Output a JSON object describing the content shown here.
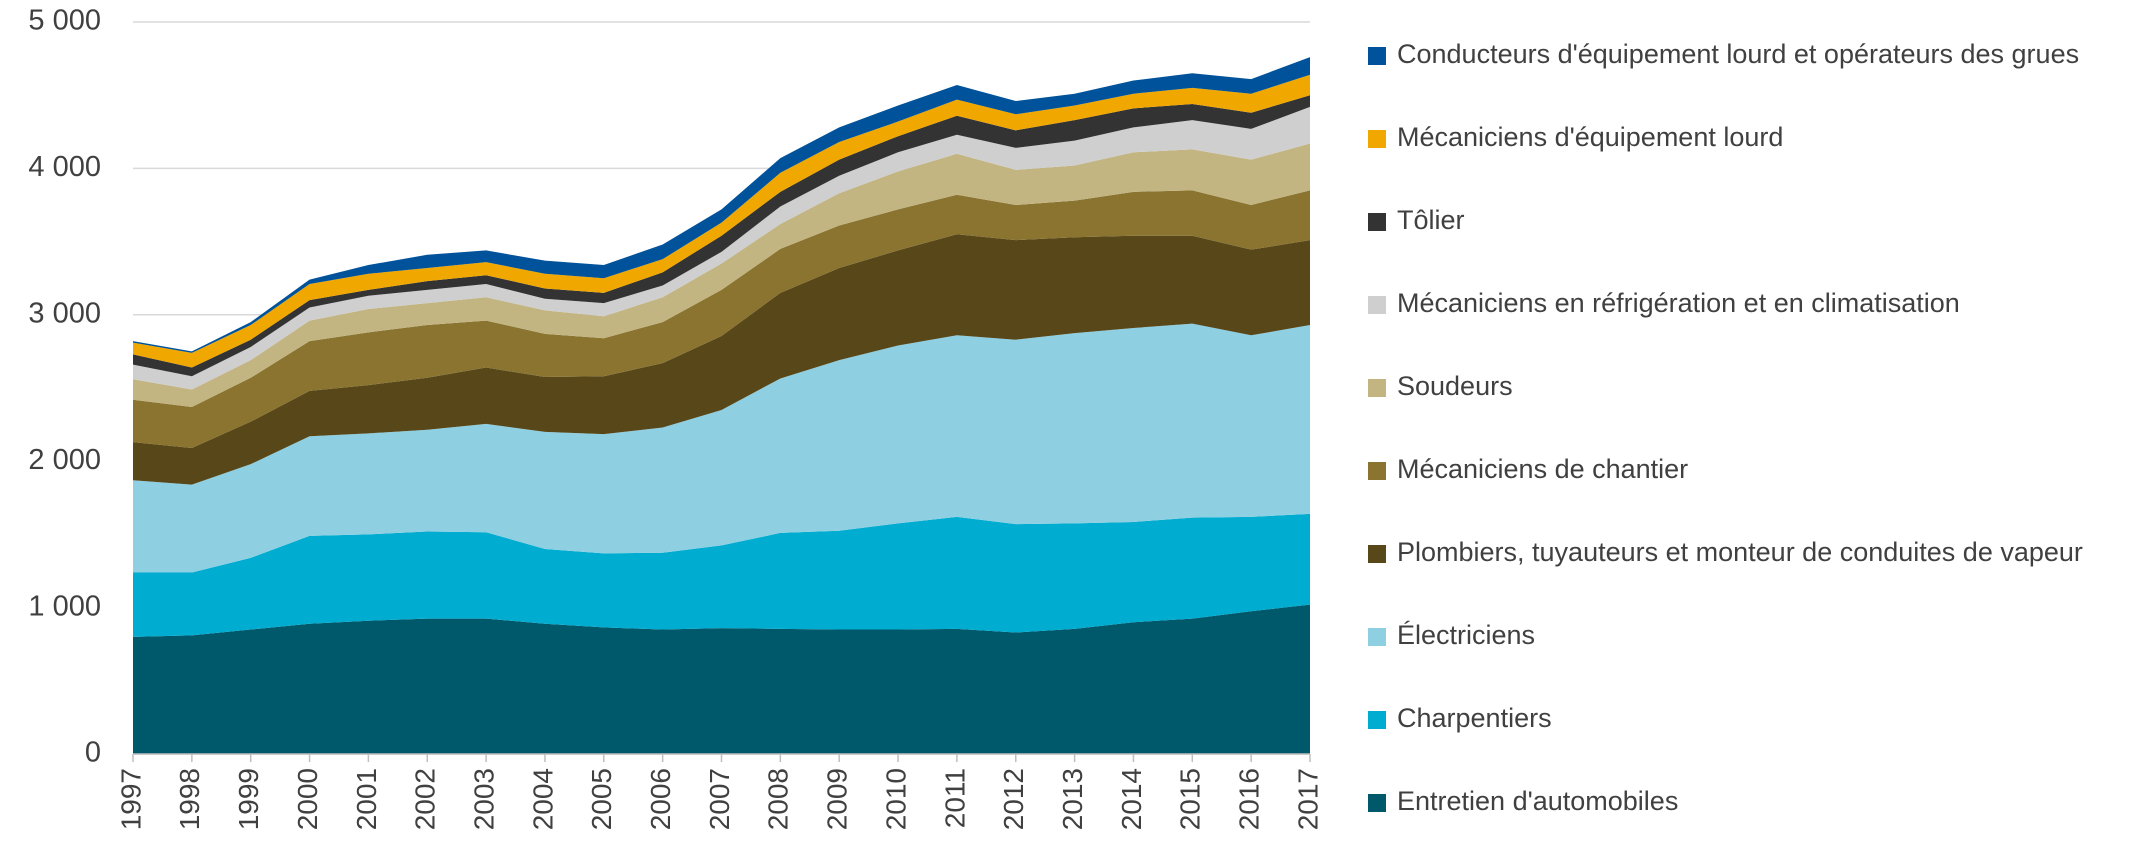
{
  "chart_data": {
    "type": "stacked-area",
    "categories": [
      "1997",
      "1998",
      "1999",
      "2000",
      "2001",
      "2002",
      "2003",
      "2004",
      "2005",
      "2006",
      "2007",
      "2008",
      "2009",
      "2010",
      "2011",
      "2012",
      "2013",
      "2014",
      "2015",
      "2016",
      "2017"
    ],
    "series": [
      {
        "name": "Entretien d'automobiles",
        "color": "#00586b",
        "values": [
          800,
          810,
          850,
          890,
          910,
          925,
          925,
          890,
          865,
          850,
          860,
          855,
          850,
          850,
          855,
          830,
          855,
          900,
          925,
          975,
          1020
        ]
      },
      {
        "name": "Charpentiers",
        "color": "#00acd0",
        "values": [
          440,
          430,
          490,
          600,
          590,
          595,
          590,
          510,
          505,
          525,
          565,
          655,
          675,
          725,
          765,
          740,
          720,
          685,
          690,
          645,
          620
        ]
      },
      {
        "name": "Électriciens",
        "color": "#8ecfe2",
        "values": [
          630,
          600,
          640,
          680,
          690,
          695,
          740,
          800,
          815,
          855,
          925,
          1055,
          1165,
          1215,
          1240,
          1260,
          1300,
          1325,
          1325,
          1240,
          1290
        ]
      },
      {
        "name": "Plombiers, tuyauteurs et monteur de conduites de vapeur",
        "color": "#574719",
        "values": [
          260,
          250,
          290,
          310,
          330,
          355,
          385,
          375,
          395,
          440,
          505,
          585,
          630,
          650,
          690,
          680,
          655,
          630,
          600,
          585,
          580
        ]
      },
      {
        "name": "Mécaniciens de chantier",
        "color": "#8a7430",
        "values": [
          290,
          280,
          300,
          340,
          360,
          360,
          320,
          295,
          260,
          280,
          315,
          300,
          290,
          280,
          270,
          240,
          250,
          300,
          310,
          305,
          340
        ]
      },
      {
        "name": "Soudeurs",
        "color": "#c2b582",
        "values": [
          140,
          120,
          120,
          140,
          160,
          150,
          160,
          160,
          150,
          170,
          180,
          170,
          220,
          260,
          280,
          240,
          240,
          270,
          280,
          310,
          320
        ]
      },
      {
        "name": "Mécaniciens en réfrigération et en climatisation",
        "color": "#cfcfcf",
        "values": [
          100,
          90,
          90,
          90,
          90,
          90,
          90,
          80,
          90,
          80,
          80,
          120,
          120,
          130,
          130,
          150,
          170,
          170,
          200,
          210,
          250
        ]
      },
      {
        "name": "Tôlier",
        "color": "#333333",
        "values": [
          70,
          60,
          50,
          50,
          40,
          60,
          60,
          70,
          70,
          90,
          110,
          100,
          110,
          110,
          130,
          120,
          140,
          130,
          110,
          110,
          80
        ]
      },
      {
        "name": "Mécaniciens d'équipement lourd",
        "color": "#f0a800",
        "values": [
          80,
          100,
          100,
          110,
          110,
          90,
          90,
          100,
          100,
          90,
          90,
          130,
          120,
          100,
          110,
          110,
          100,
          100,
          110,
          130,
          140
        ]
      },
      {
        "name": "Conducteurs d'équipement lourd et opérateurs des grues",
        "color": "#00539b",
        "values": [
          10,
          10,
          20,
          30,
          60,
          90,
          80,
          90,
          90,
          100,
          90,
          100,
          100,
          110,
          100,
          90,
          80,
          90,
          100,
          100,
          120
        ]
      }
    ],
    "ylim": [
      0,
      5000
    ],
    "yticks": [
      0,
      {
        "value": 1000,
        "label": "1 000"
      },
      {
        "value": 2000,
        "label": "2 000"
      },
      {
        "value": 3000,
        "label": "3 000"
      },
      {
        "value": 4000,
        "label": "4 000"
      },
      {
        "value": 5000,
        "label": "5 000"
      }
    ],
    "grid": true,
    "legend": "right"
  }
}
